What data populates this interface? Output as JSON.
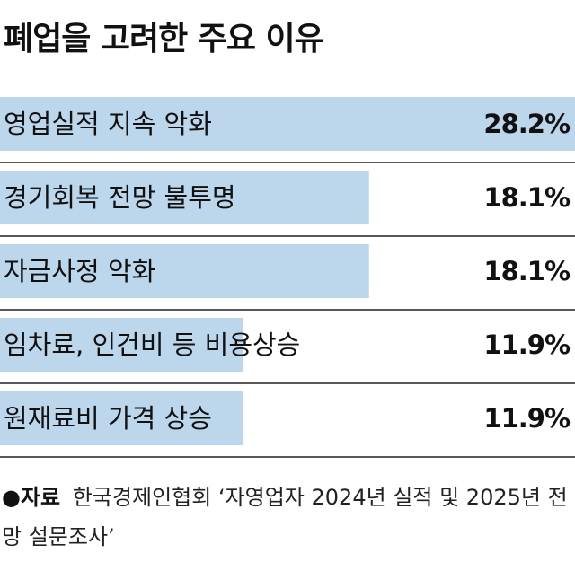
{
  "title": "폐업을 고려한 주요 이유",
  "chart_data": {
    "type": "bar",
    "orientation": "horizontal",
    "categories": [
      "영업실적 지속 악화",
      "경기회복 전망 불투명",
      "자금사정 악화",
      "임차료, 인건비 등 비용상승",
      "원재료비 가격 상승"
    ],
    "values": [
      28.2,
      18.1,
      18.1,
      11.9,
      11.9
    ],
    "value_labels": [
      "28.2%",
      "18.1%",
      "18.1%",
      "11.9%",
      "11.9%"
    ],
    "unit": "%",
    "xlim": [
      0,
      28.2
    ],
    "colors": {
      "bar": "#bcd6ec",
      "divider": "#222222"
    }
  },
  "source": {
    "label": "●자료",
    "text": "한국경제인협회 ‘자영업자 2024년 실적 및 2025년 전망 설문조사’"
  }
}
